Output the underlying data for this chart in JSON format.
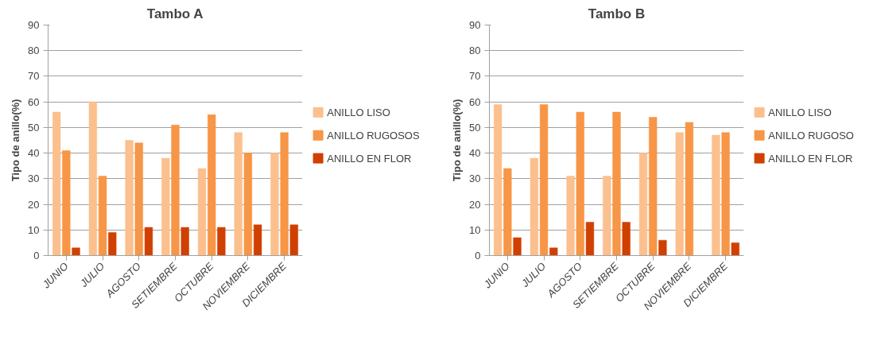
{
  "chart_data": [
    {
      "type": "bar",
      "title": "Tambo A",
      "ylabel": "Tipo de anillo(%)",
      "categories": [
        "JUNIO",
        "JULIO",
        "AGOSTO",
        "SETIEMBRE",
        "OCTUBRE",
        "NOVIEMBRE",
        "DICIEMBRE"
      ],
      "series": [
        {
          "name": "ANILLO LISO",
          "color": "#fbc08e",
          "values": [
            56,
            60,
            45,
            38,
            34,
            48,
            40
          ]
        },
        {
          "name": "ANILLO RUGOSOS",
          "color": "#f79646",
          "values": [
            41,
            31,
            44,
            51,
            55,
            40,
            48
          ]
        },
        {
          "name": "ANILLO EN FLOR",
          "color": "#d04000",
          "values": [
            3,
            9,
            11,
            11,
            11,
            12,
            12
          ]
        }
      ],
      "ylim": [
        0,
        90
      ],
      "yticks": [
        0,
        10,
        20,
        30,
        40,
        50,
        60,
        70,
        80,
        90
      ],
      "grid": "y",
      "legend": "right"
    },
    {
      "type": "bar",
      "title": "Tambo B",
      "ylabel": "Tipo de anillo(%)",
      "categories": [
        "JUNIO",
        "JULIO",
        "AGOSTO",
        "SETIEMBRE",
        "OCTUBRE",
        "NOVIEMBRE",
        "DICIEMBRE"
      ],
      "series": [
        {
          "name": "ANILLO LISO",
          "color": "#fbc08e",
          "values": [
            59,
            38,
            31,
            31,
            40,
            48,
            47
          ]
        },
        {
          "name": "ANILLO RUGOSO",
          "color": "#f79646",
          "values": [
            34,
            59,
            56,
            56,
            54,
            52,
            48
          ]
        },
        {
          "name": "ANILLO EN FLOR",
          "color": "#d04000",
          "values": [
            7,
            3,
            13,
            13,
            6,
            0,
            5
          ]
        }
      ],
      "ylim": [
        0,
        90
      ],
      "yticks": [
        0,
        10,
        20,
        30,
        40,
        50,
        60,
        70,
        80,
        90
      ],
      "grid": "y",
      "legend": "right"
    }
  ]
}
